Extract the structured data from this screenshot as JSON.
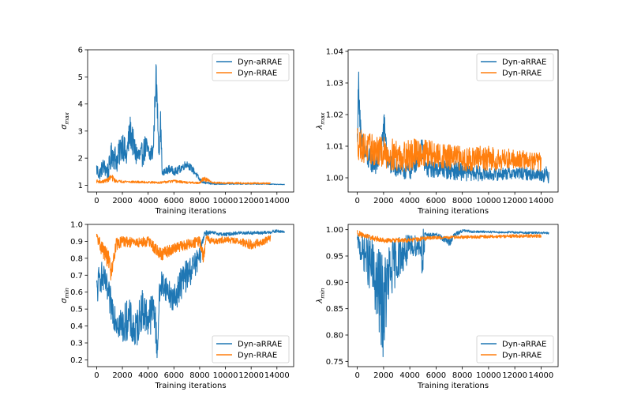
{
  "figure": {
    "colors": {
      "aRRAE": "#1f77b4",
      "RRAE": "#ff7f0e"
    }
  },
  "chart_data": [
    {
      "id": "sigma_max",
      "type": "line",
      "title": "",
      "xlabel": "Training iterations",
      "ylabel_main": "σ",
      "ylabel_sub": "max",
      "xlim": [
        -700,
        15300
      ],
      "ylim": [
        0.75,
        6.0
      ],
      "xticks": [
        0,
        2000,
        4000,
        6000,
        8000,
        10000,
        12000,
        14000
      ],
      "yticks": [
        1,
        2,
        3,
        4,
        5,
        6
      ],
      "ytick_labels": [
        "1",
        "2",
        "3",
        "4",
        "5",
        "6"
      ],
      "legend": [
        "Dyn-aRRAE",
        "Dyn-RRAE"
      ],
      "legend_loc": "upper right",
      "series": [
        {
          "name": "Dyn-aRRAE",
          "x": [
            0,
            200,
            500,
            900,
            1200,
            1600,
            2000,
            2300,
            2600,
            3000,
            3400,
            3800,
            4100,
            4400,
            4600,
            4700,
            4850,
            4950,
            5100,
            5600,
            6200,
            7000,
            7600,
            8000,
            8300,
            9000,
            10000,
            11000,
            12000,
            13000,
            14000,
            14600
          ],
          "y": [
            1.6,
            1.4,
            1.7,
            1.5,
            2.2,
            1.9,
            2.6,
            2.0,
            3.0,
            2.2,
            2.0,
            2.4,
            2.1,
            2.3,
            5.1,
            4.0,
            2.2,
            3.5,
            1.4,
            1.6,
            1.5,
            1.8,
            1.5,
            1.2,
            1.1,
            1.05,
            1.05,
            1.05,
            1.05,
            1.05,
            1.03,
            1.03
          ],
          "amp": [
            0.3,
            0.25,
            0.3,
            0.35,
            0.55,
            0.45,
            0.6,
            0.5,
            0.6,
            0.5,
            0.45,
            0.5,
            0.4,
            0.4,
            0.7,
            0.6,
            0.35,
            0.5,
            0.15,
            0.15,
            0.15,
            0.15,
            0.12,
            0.08,
            0.05,
            0.03,
            0.02,
            0.02,
            0.02,
            0.02,
            0.01,
            0.01
          ]
        },
        {
          "name": "Dyn-RRAE",
          "x": [
            0,
            400,
            900,
            1100,
            1500,
            3000,
            5000,
            6000,
            7000,
            8000,
            8300,
            9000,
            10000,
            11000,
            12000,
            13000,
            13500
          ],
          "y": [
            1.15,
            1.12,
            1.2,
            1.3,
            1.15,
            1.12,
            1.1,
            1.15,
            1.1,
            1.08,
            1.25,
            1.1,
            1.08,
            1.08,
            1.07,
            1.07,
            1.07
          ],
          "amp": [
            0.06,
            0.05,
            0.08,
            0.15,
            0.05,
            0.04,
            0.04,
            0.05,
            0.04,
            0.03,
            0.1,
            0.03,
            0.03,
            0.03,
            0.03,
            0.03,
            0.02
          ]
        }
      ]
    },
    {
      "id": "lambda_max",
      "type": "line",
      "title": "",
      "xlabel": "Training iterations",
      "ylabel_main": "λ",
      "ylabel_sub": "max",
      "xlim": [
        -700,
        15300
      ],
      "ylim": [
        0.9955,
        1.0405
      ],
      "xticks": [
        0,
        2000,
        4000,
        6000,
        8000,
        10000,
        12000,
        14000
      ],
      "yticks": [
        1.0,
        1.01,
        1.02,
        1.03,
        1.04
      ],
      "ytick_labels": [
        "1.00",
        "1.01",
        "1.02",
        "1.03",
        "1.04"
      ],
      "legend": [
        "Dyn-aRRAE",
        "Dyn-RRAE"
      ],
      "legend_loc": "upper right",
      "series": [
        {
          "name": "Dyn-aRRAE",
          "x": [
            0,
            100,
            300,
            800,
            1500,
            2100,
            2300,
            3000,
            4000,
            5000,
            5200,
            6000,
            8000,
            10000,
            12000,
            14000,
            14600
          ],
          "y": [
            1.012,
            1.03,
            1.01,
            1.006,
            1.004,
            1.016,
            1.005,
            1.003,
            1.002,
            1.009,
            1.003,
            1.003,
            1.002,
            1.001,
            1.0015,
            1.001,
            1.001
          ],
          "amp": [
            0.004,
            0.006,
            0.005,
            0.004,
            0.003,
            0.006,
            0.003,
            0.003,
            0.003,
            0.004,
            0.003,
            0.003,
            0.003,
            0.002,
            0.002,
            0.002,
            0.003
          ]
        },
        {
          "name": "Dyn-RRAE",
          "x": [
            0,
            300,
            1000,
            2000,
            3000,
            4000,
            5000,
            6000,
            8000,
            10000,
            12000,
            14000
          ],
          "y": [
            1.012,
            1.01,
            1.009,
            1.008,
            1.007,
            1.007,
            1.008,
            1.007,
            1.006,
            1.006,
            1.006,
            1.005
          ],
          "amp": [
            0.006,
            0.005,
            0.005,
            0.005,
            0.005,
            0.005,
            0.005,
            0.004,
            0.004,
            0.004,
            0.003,
            0.003
          ]
        }
      ]
    },
    {
      "id": "sigma_min",
      "type": "line",
      "title": "",
      "xlabel": "Training iterations",
      "ylabel_main": "σ",
      "ylabel_sub": "min",
      "xlim": [
        -700,
        15300
      ],
      "ylim": [
        0.16,
        1.0
      ],
      "xticks": [
        0,
        2000,
        4000,
        6000,
        8000,
        10000,
        12000,
        14000
      ],
      "yticks": [
        0.2,
        0.3,
        0.4,
        0.5,
        0.6,
        0.7,
        0.8,
        0.9,
        1.0
      ],
      "ytick_labels": [
        "0.2",
        "0.3",
        "0.4",
        "0.5",
        "0.6",
        "0.7",
        "0.8",
        "0.9",
        "1.0"
      ],
      "legend": [
        "Dyn-aRRAE",
        "Dyn-RRAE"
      ],
      "legend_loc": "lower right",
      "series": [
        {
          "name": "Dyn-aRRAE",
          "x": [
            0,
            300,
            700,
            1000,
            1500,
            2000,
            2500,
            3000,
            3500,
            4000,
            4500,
            4700,
            4900,
            5000,
            5200,
            5600,
            6000,
            6500,
            7000,
            7500,
            8000,
            8200,
            8400,
            9000,
            10000,
            11000,
            12000,
            13000,
            14000,
            14600
          ],
          "y": [
            0.6,
            0.7,
            0.65,
            0.55,
            0.45,
            0.4,
            0.45,
            0.35,
            0.5,
            0.45,
            0.5,
            0.25,
            0.6,
            0.65,
            0.65,
            0.6,
            0.55,
            0.65,
            0.7,
            0.75,
            0.8,
            0.9,
            0.95,
            0.95,
            0.94,
            0.95,
            0.95,
            0.95,
            0.96,
            0.955
          ],
          "amp": [
            0.1,
            0.1,
            0.08,
            0.1,
            0.1,
            0.12,
            0.12,
            0.12,
            0.12,
            0.12,
            0.12,
            0.08,
            0.1,
            0.08,
            0.08,
            0.08,
            0.08,
            0.1,
            0.1,
            0.08,
            0.06,
            0.03,
            0.02,
            0.01,
            0.01,
            0.01,
            0.01,
            0.01,
            0.01,
            0.005
          ]
        },
        {
          "name": "Dyn-RRAE",
          "x": [
            0,
            500,
            1000,
            1100,
            1500,
            2000,
            3000,
            4000,
            5000,
            6000,
            7000,
            8000,
            8300,
            8500,
            9000,
            10000,
            11000,
            12000,
            13000,
            13500
          ],
          "y": [
            0.92,
            0.85,
            0.78,
            0.7,
            0.88,
            0.9,
            0.89,
            0.9,
            0.82,
            0.86,
            0.88,
            0.9,
            0.8,
            0.92,
            0.9,
            0.91,
            0.9,
            0.88,
            0.9,
            0.92
          ],
          "amp": [
            0.04,
            0.05,
            0.06,
            0.04,
            0.04,
            0.03,
            0.03,
            0.03,
            0.04,
            0.03,
            0.03,
            0.03,
            0.04,
            0.02,
            0.02,
            0.02,
            0.02,
            0.03,
            0.02,
            0.02
          ]
        }
      ]
    },
    {
      "id": "lambda_min",
      "type": "line",
      "title": "",
      "xlabel": "Training iterations",
      "ylabel_main": "λ",
      "ylabel_sub": "min",
      "xlim": [
        -700,
        15300
      ],
      "ylim": [
        0.74,
        1.01
      ],
      "xticks": [
        0,
        2000,
        4000,
        6000,
        8000,
        10000,
        12000,
        14000
      ],
      "yticks": [
        0.75,
        0.8,
        0.85,
        0.9,
        0.95,
        1.0
      ],
      "ytick_labels": [
        "0.75",
        "0.80",
        "0.85",
        "0.90",
        "0.95",
        "1.00"
      ],
      "legend": [
        "Dyn-aRRAE",
        "Dyn-RRAE"
      ],
      "legend_loc": "lower right",
      "series": [
        {
          "name": "Dyn-aRRAE",
          "x": [
            0,
            300,
            700,
            1000,
            1400,
            1800,
            2000,
            2300,
            2700,
            3200,
            3800,
            4300,
            4800,
            5000,
            5200,
            6000,
            6800,
            7000,
            7400,
            8000,
            9000,
            10000,
            11000,
            12000,
            13000,
            14000,
            14600
          ],
          "y": [
            0.98,
            0.96,
            0.95,
            0.93,
            0.9,
            0.87,
            0.85,
            0.9,
            0.93,
            0.95,
            0.96,
            0.97,
            0.97,
            0.95,
            0.99,
            0.99,
            0.98,
            0.975,
            0.99,
            0.998,
            0.996,
            0.996,
            0.995,
            0.995,
            0.994,
            0.994,
            0.993
          ],
          "amp": [
            0.01,
            0.03,
            0.04,
            0.06,
            0.07,
            0.09,
            0.1,
            0.07,
            0.05,
            0.04,
            0.03,
            0.02,
            0.02,
            0.06,
            0.004,
            0.004,
            0.006,
            0.008,
            0.004,
            0.003,
            0.002,
            0.002,
            0.002,
            0.002,
            0.002,
            0.002,
            0.002
          ]
        },
        {
          "name": "Dyn-RRAE",
          "x": [
            0,
            300,
            1000,
            2000,
            3000,
            4000,
            5000,
            6000,
            7000,
            8000,
            9000,
            10000,
            11000,
            12000,
            13000,
            14000
          ],
          "y": [
            0.995,
            0.99,
            0.985,
            0.98,
            0.98,
            0.98,
            0.983,
            0.985,
            0.985,
            0.986,
            0.986,
            0.987,
            0.987,
            0.988,
            0.988,
            0.988
          ],
          "amp": [
            0.006,
            0.005,
            0.005,
            0.005,
            0.004,
            0.004,
            0.004,
            0.003,
            0.003,
            0.003,
            0.003,
            0.003,
            0.003,
            0.003,
            0.003,
            0.003
          ]
        }
      ]
    }
  ]
}
